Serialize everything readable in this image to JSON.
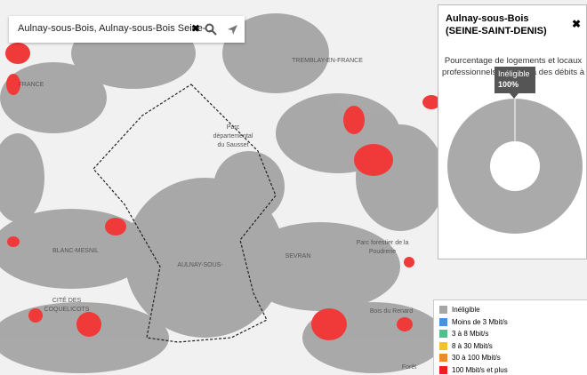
{
  "search": {
    "query": "Aulnay-sous-Bois, Aulnay-sous-Bois Seine-..."
  },
  "map_labels": [
    "TREMBLAY-EN-FRANCE",
    "FRANCE",
    "Parc",
    "départemental",
    "du Sausset",
    "AULNAY-SOUS-",
    "SEVRAN",
    "Parc forestier de la",
    "Poudrerie",
    "Bois du Renard",
    "CITÉ DES",
    "COQUELICOTS",
    "BLANC-MESNIL",
    "Forêt"
  ],
  "chart_data": {
    "type": "pie",
    "title": "Aulnay-sous-Bois (SEINE-SAINT-DENIS)",
    "subtitle": "Pourcentage de logements et locaux professionnels éligibles à des débits à fin",
    "categories": [
      "Inéligible"
    ],
    "values": [
      100
    ],
    "value_labels": [
      "100%"
    ],
    "colors": [
      "#aaaaaa"
    ],
    "donut": true
  },
  "map_legend": [
    {
      "label": "Inéligible",
      "color": "#a6a6a6"
    },
    {
      "label": "Moins de 3 Mbit/s",
      "color": "#4a90e2"
    },
    {
      "label": "3 à 8 Mbit/s",
      "color": "#4cc38a"
    },
    {
      "label": "8 à 30 Mbit/s",
      "color": "#f2c12e"
    },
    {
      "label": "30 à 100 Mbit/s",
      "color": "#f08a24"
    },
    {
      "label": "100 Mbit/s et plus",
      "color": "#f21d1d"
    }
  ]
}
